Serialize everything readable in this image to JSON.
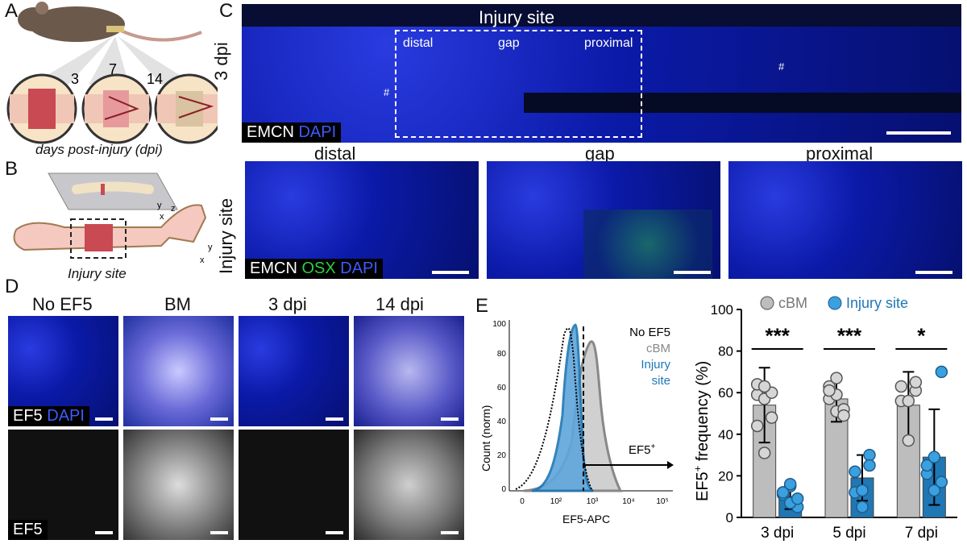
{
  "panels": {
    "A": {
      "label": "A",
      "timepoints": [
        "3",
        "7",
        "14"
      ],
      "caption": "days post-injury (dpi)"
    },
    "B": {
      "label": "B",
      "axes_top": {
        "x": "x",
        "y": "y",
        "z": "z"
      },
      "axes_bottom": {
        "x": "x",
        "y": "y"
      },
      "caption": "Injury site"
    },
    "C": {
      "label": "C",
      "row_label_top": "3 dpi",
      "row_label_bottom": "Injury site",
      "title": "Injury site",
      "regions": [
        "distal",
        "gap",
        "proximal"
      ],
      "hash": "#",
      "stain_top": {
        "emcn": "EMCN",
        "dapi": "DAPI"
      },
      "stain_bottom": {
        "emcn": "EMCN",
        "osx": "OSX",
        "dapi": "DAPI"
      }
    },
    "D": {
      "label": "D",
      "columns": [
        "No EF5",
        "BM",
        "3 dpi",
        "14 dpi"
      ],
      "stain_top": {
        "ef5": "EF5",
        "dapi": "DAPI"
      },
      "stain_bottom": {
        "ef5": "EF5"
      }
    },
    "E": {
      "label": "E",
      "histogram": {
        "ylabel": "Count (norm)",
        "xlabel": "EF5-APC",
        "yticks": [
          "0",
          "20",
          "40",
          "60",
          "80",
          "100"
        ],
        "xticks": [
          "0",
          "10²",
          "10³",
          "10⁴",
          "10⁵"
        ],
        "legend": [
          "No EF5",
          "cBM",
          "Injury",
          "site"
        ],
        "gate_label": "EF5",
        "gate_sup": "+"
      },
      "barchart": {
        "ylabel_main": "EF5",
        "ylabel_sup": "+",
        "ylabel_rest": " frequency (%)",
        "legend": [
          "cBM",
          "Injury site"
        ],
        "significance": [
          "***",
          "***",
          "*"
        ]
      }
    }
  },
  "colors": {
    "cbm": "#bdbdbd",
    "injury": "#1f77b4",
    "injury_fill": "#3aa0e0",
    "dapi": "#3d5bff",
    "osx": "#2ecc40"
  },
  "chart_data": {
    "type": "bar",
    "categories": [
      "3 dpi",
      "5 dpi",
      "7 dpi"
    ],
    "ylim": [
      0,
      100
    ],
    "yticks": [
      0,
      20,
      40,
      60,
      80,
      100
    ],
    "series": [
      {
        "name": "cBM",
        "values": [
          54,
          57,
          54
        ],
        "sd": [
          18,
          11,
          16
        ],
        "points": [
          [
            59,
            57,
            48,
            44,
            31,
            60,
            64,
            63
          ],
          [
            57,
            51,
            52,
            63,
            59,
            49,
            61,
            67
          ],
          [
            56,
            37,
            61,
            63,
            56,
            65
          ]
        ]
      },
      {
        "name": "Injury site",
        "values": [
          10,
          19,
          29
        ],
        "sd": [
          6,
          11,
          23
        ],
        "points": [
          [
            11,
            15,
            5,
            12,
            7,
            9,
            12,
            16
          ],
          [
            12,
            5,
            30,
            22,
            13,
            25
          ],
          [
            21,
            13,
            17,
            25,
            29,
            70
          ]
        ]
      }
    ]
  }
}
